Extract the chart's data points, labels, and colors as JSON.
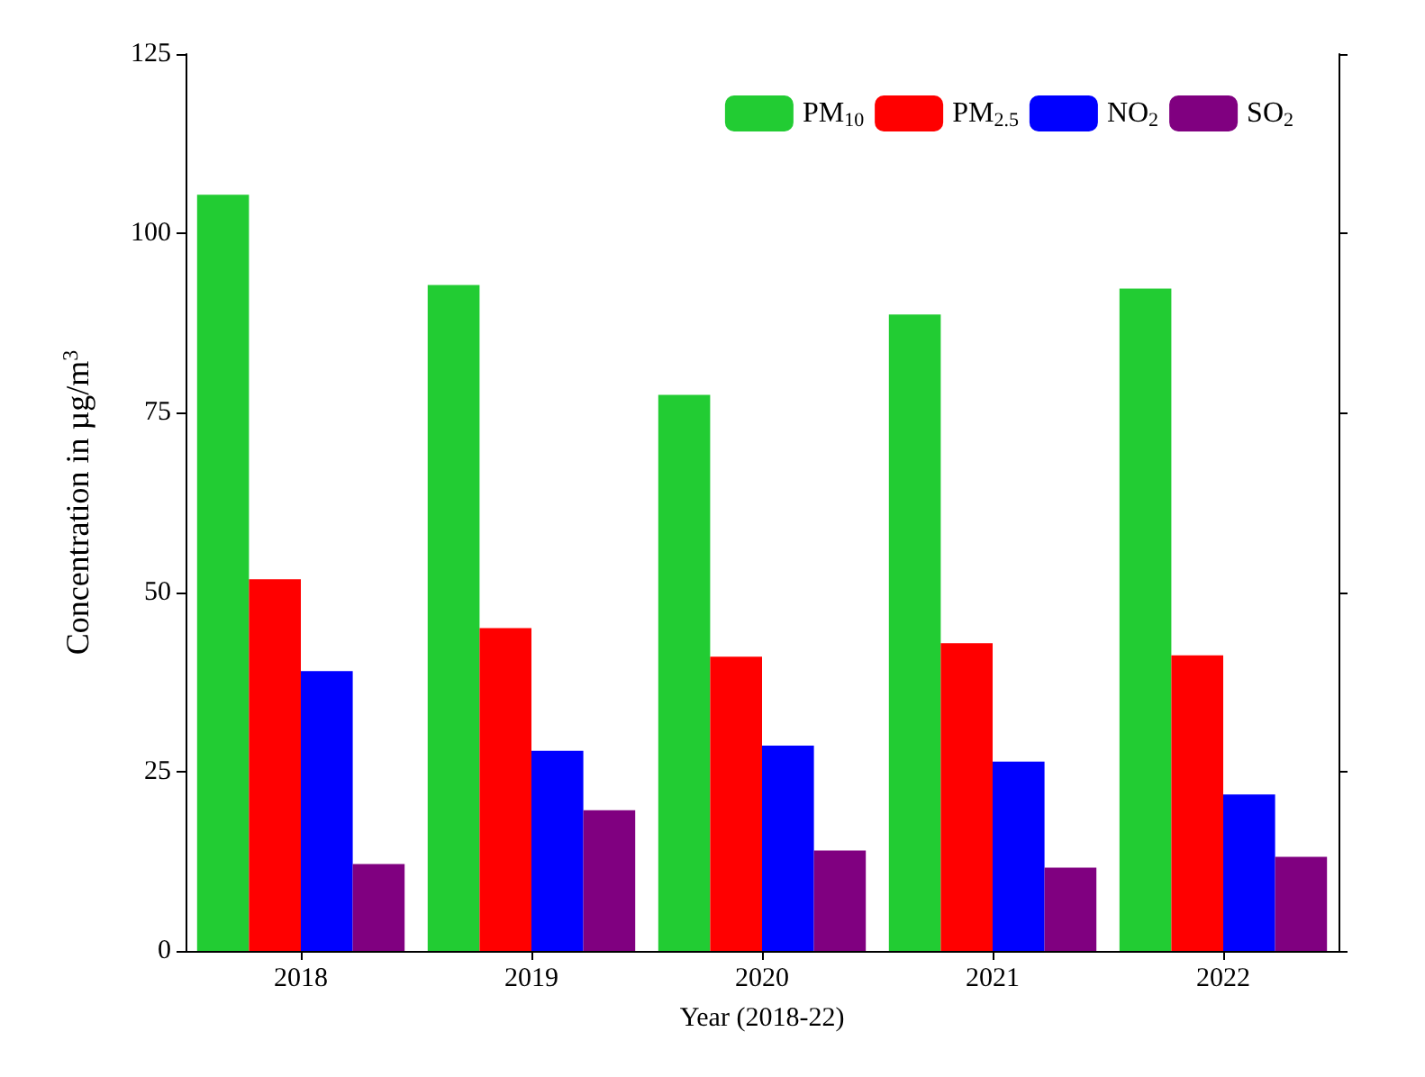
{
  "chart_data": {
    "type": "bar",
    "xlabel": "Year (2018-22)",
    "ylabel": "Concentration in µg/m$^{3}$",
    "categories": [
      "2018",
      "2019",
      "2020",
      "2021",
      "2022"
    ],
    "series": [
      {
        "name": "PM$_{10}$",
        "color": "#22cc33",
        "values": [
          105.4,
          92.8,
          77.5,
          88.7,
          92.3
        ]
      },
      {
        "name": "PM$_{2.5}$",
        "color": "#ff0000",
        "values": [
          51.8,
          45,
          41,
          42.9,
          41.2
        ]
      },
      {
        "name": "NO$_{2}$",
        "color": "#0000ff",
        "values": [
          39,
          27.9,
          28.6,
          26.4,
          21.8
        ]
      },
      {
        "name": "SO$_{2}$",
        "color": "#800080",
        "values": [
          12.1,
          19.6,
          14,
          11.6,
          13.1
        ]
      }
    ],
    "ylim": [
      0,
      125
    ],
    "yticks": [
      0,
      25,
      50,
      75,
      100,
      125
    ],
    "grid": false,
    "legend": "top right"
  }
}
